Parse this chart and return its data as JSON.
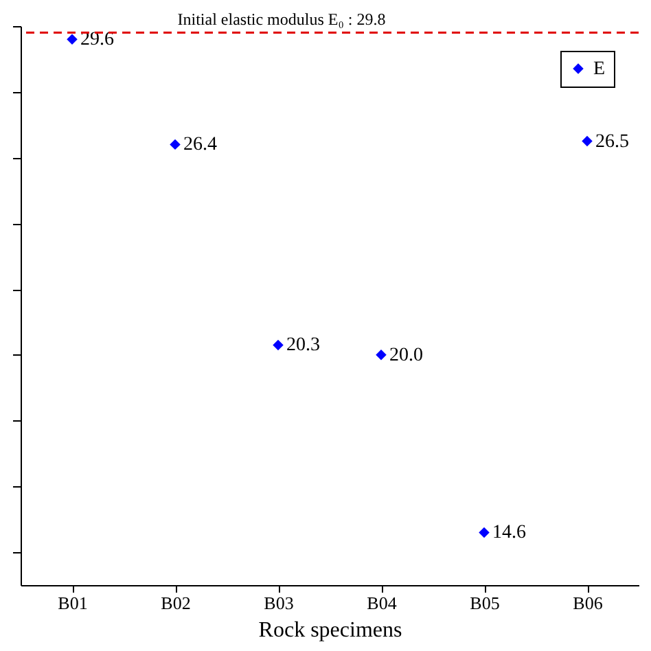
{
  "chart_data": {
    "type": "scatter",
    "xlabel": "Rock specimens",
    "categories": [
      "B01",
      "B02",
      "B03",
      "B04",
      "B05",
      "B06"
    ],
    "series": [
      {
        "name": "E",
        "color": "#0000ff",
        "values": [
          29.6,
          26.4,
          20.3,
          20.0,
          14.6,
          26.5
        ],
        "value_labels": [
          "29.6",
          "26.4",
          "20.3",
          "20.0",
          "14.6",
          "26.5"
        ]
      }
    ],
    "marker": "diamond",
    "ylim": [
      13,
      30
    ],
    "yticks": [
      {
        "value": 14,
        "label": null
      },
      {
        "value": 16,
        "label": null
      },
      {
        "value": 18,
        "label": null
      },
      {
        "value": 20,
        "label": null
      },
      {
        "value": 22,
        "label": null
      },
      {
        "value": 24,
        "label": null
      },
      {
        "value": 26,
        "label": null
      },
      {
        "value": 28,
        "label": null
      },
      {
        "value": 30,
        "label": null
      }
    ],
    "tick_labels": "x",
    "grid": false,
    "legend": "top right",
    "ref_lines": [
      {
        "axis": "y",
        "value": 29.8,
        "label": "Initial elastic modulus E₀ : 29.8",
        "color": "#e00000",
        "line_style": "dashed"
      }
    ]
  }
}
